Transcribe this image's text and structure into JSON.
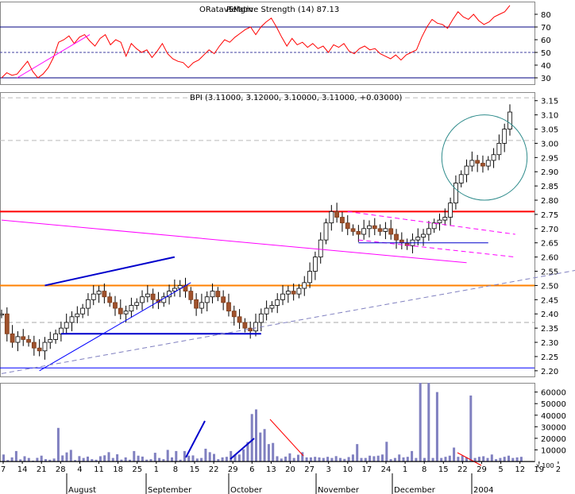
{
  "chart_data": [
    {
      "type": "line",
      "panel": "rsi",
      "title": "Relative Strength (14) 87.13",
      "overlay_text": "ORatavSMgm",
      "yticks": [
        30,
        40,
        50,
        60,
        70,
        80
      ],
      "ylim": [
        25,
        90
      ],
      "reference_lines": [
        70,
        50,
        30
      ],
      "series": [
        {
          "color": "#ff0000",
          "values": [
            30,
            34,
            32,
            33,
            38,
            43,
            35,
            30,
            33,
            38,
            46,
            58,
            60,
            63,
            57,
            62,
            64,
            59,
            55,
            61,
            64,
            56,
            60,
            58,
            47,
            57,
            53,
            50,
            52,
            46,
            51,
            57,
            49,
            45,
            43,
            42,
            38,
            42,
            44,
            48,
            52,
            49,
            55,
            60,
            58,
            62,
            65,
            68,
            70,
            64,
            70,
            74,
            77,
            70,
            62,
            55,
            61,
            56,
            58,
            54,
            57,
            53,
            55,
            50,
            56,
            54,
            57,
            51,
            49,
            53,
            55,
            52,
            53,
            49,
            47,
            45,
            48,
            44,
            48,
            50,
            52,
            62,
            70,
            76,
            73,
            72,
            69,
            76,
            82,
            78,
            76,
            80,
            75,
            72,
            74,
            78,
            80,
            82,
            87
          ]
        }
      ],
      "trendlines": [
        {
          "color": "#ff00ff",
          "from": [
            3,
            30
          ],
          "to": [
            17,
            64
          ]
        }
      ]
    },
    {
      "type": "candlestick",
      "panel": "price",
      "title": "BPI (3.11000, 3.12000, 3.10000, 3.11000, +0.03000)",
      "yticks": [
        2.2,
        2.25,
        2.3,
        2.35,
        2.4,
        2.45,
        2.5,
        2.55,
        2.6,
        2.65,
        2.7,
        2.75,
        2.8,
        2.85,
        2.9,
        2.95,
        3.0,
        3.05,
        3.1,
        3.15
      ],
      "ylim": [
        2.18,
        3.18
      ],
      "closes": [
        2.4,
        2.33,
        2.3,
        2.32,
        2.31,
        2.3,
        2.28,
        2.27,
        2.3,
        2.31,
        2.33,
        2.35,
        2.37,
        2.39,
        2.4,
        2.42,
        2.45,
        2.47,
        2.48,
        2.46,
        2.44,
        2.42,
        2.4,
        2.41,
        2.43,
        2.44,
        2.46,
        2.47,
        2.45,
        2.44,
        2.46,
        2.48,
        2.49,
        2.5,
        2.48,
        2.45,
        2.42,
        2.44,
        2.46,
        2.48,
        2.46,
        2.44,
        2.41,
        2.39,
        2.37,
        2.35,
        2.34,
        2.37,
        2.4,
        2.42,
        2.43,
        2.45,
        2.47,
        2.48,
        2.47,
        2.49,
        2.51,
        2.55,
        2.6,
        2.66,
        2.72,
        2.76,
        2.74,
        2.72,
        2.7,
        2.69,
        2.68,
        2.7,
        2.71,
        2.7,
        2.69,
        2.7,
        2.68,
        2.66,
        2.65,
        2.64,
        2.66,
        2.67,
        2.68,
        2.7,
        2.72,
        2.73,
        2.74,
        2.79,
        2.86,
        2.89,
        2.92,
        2.94,
        2.93,
        2.92,
        2.94,
        2.96,
        3.0,
        3.05,
        3.11
      ],
      "hlines": [
        {
          "value": 2.76,
          "color": "#ff0000"
        },
        {
          "value": 2.5,
          "color": "#ff8000"
        },
        {
          "value": 2.21,
          "color": "#0000ff"
        },
        {
          "value": 3.01,
          "color": "#bbbbbb",
          "dash": true
        },
        {
          "value": 3.16,
          "color": "#bbbbbb",
          "dash": true
        },
        {
          "value": 2.37,
          "color": "#aaaaaa",
          "dash": true
        }
      ],
      "trendlines": [
        {
          "color": "#ff00ff",
          "from": [
            0,
            2.73
          ],
          "to": [
            86,
            2.58
          ]
        },
        {
          "color": "#0000cc",
          "from": [
            8,
            2.5
          ],
          "to": [
            32,
            2.6
          ],
          "width": 2
        },
        {
          "color": "#0000cc",
          "from": [
            11,
            2.33
          ],
          "to": [
            48,
            2.33
          ],
          "width": 2
        },
        {
          "color": "#0000ff",
          "from": [
            7,
            2.2
          ],
          "to": [
            35,
            2.51
          ]
        },
        {
          "color": "#8080c0",
          "from": [
            0,
            2.19
          ],
          "to": [
            114,
            2.58
          ],
          "dash": true
        },
        {
          "color": "#ff00ff",
          "from": [
            64,
            2.76
          ],
          "to": [
            95,
            2.68
          ],
          "dash": true
        },
        {
          "color": "#ff00ff",
          "from": [
            66,
            2.66
          ],
          "to": [
            95,
            2.6
          ],
          "dash": true
        },
        {
          "color": "#0000cc",
          "from": [
            66,
            2.65
          ],
          "to": [
            90,
            2.65
          ]
        }
      ],
      "annotation_circle": {
        "center": [
          124,
          2.95
        ],
        "radius_y": 0.15
      }
    },
    {
      "type": "bar",
      "panel": "volume",
      "yticks": [
        10000,
        20000,
        30000,
        40000,
        50000,
        60000
      ],
      "ylim": [
        0,
        68000
      ],
      "unit_label": "x 100",
      "values": [
        6000,
        1200,
        3500,
        9000,
        1800,
        4500,
        3000,
        700,
        3100,
        5000,
        2000,
        1500,
        2500,
        29000,
        5200,
        7800,
        10000,
        1200,
        4600,
        3000,
        4200,
        2000,
        1500,
        4500,
        5300,
        8000,
        3000,
        6200,
        1600,
        3500,
        1500,
        9000,
        5000,
        4200,
        1600,
        2000,
        7500,
        3000,
        2000,
        10000,
        3500,
        9000,
        1500,
        9000,
        5000,
        5200,
        2500,
        3000,
        11000,
        8000,
        6500,
        2000,
        3500,
        4000,
        9000,
        6000,
        6000,
        10500,
        16800,
        41000,
        45000,
        25000,
        28000,
        15000,
        16000,
        4500,
        2500,
        4200,
        7000,
        3000,
        5800,
        8000,
        3500,
        3500,
        4000,
        3500,
        3000,
        4000,
        3000,
        4600,
        3000,
        2200,
        3800,
        6000,
        15000,
        3000,
        3000,
        5000,
        4500,
        5000,
        6000,
        17000,
        2000,
        3000,
        6000,
        3500,
        4000,
        9000,
        3000,
        68000,
        3000,
        68000,
        3000,
        60000,
        3000,
        4000,
        5000,
        12000,
        4000,
        5000,
        3500,
        57000,
        3000,
        4000,
        4500,
        3000,
        6000,
        2000,
        3000,
        4000,
        5000,
        3000,
        3500,
        4000
      ],
      "trendlines": [
        {
          "color": "#0000cc",
          "label": "up"
        },
        {
          "color": "#0000cc",
          "label": "up"
        },
        {
          "color": "#ff0000",
          "label": "down"
        },
        {
          "color": "#ff0000",
          "label": "down"
        }
      ]
    }
  ],
  "x_axis": {
    "day_labels": [
      "7",
      "14",
      "21",
      "28",
      "4",
      "11",
      "18",
      "25",
      "1",
      "8",
      "15",
      "22",
      "29",
      "6",
      "13",
      "20",
      "27",
      "3",
      "10",
      "17",
      "24",
      "1",
      "8",
      "15",
      "22",
      "29",
      "5",
      "12",
      "19",
      "2"
    ],
    "month_labels": [
      "August",
      "September",
      "October",
      "November",
      "December",
      "2004"
    ]
  }
}
